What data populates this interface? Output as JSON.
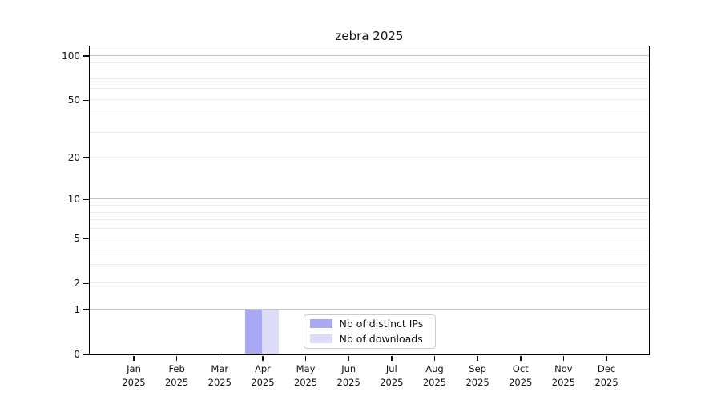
{
  "chart_data": {
    "type": "bar",
    "title": "zebra 2025",
    "categories": [
      {
        "month": "Jan",
        "year": "2025"
      },
      {
        "month": "Feb",
        "year": "2025"
      },
      {
        "month": "Mar",
        "year": "2025"
      },
      {
        "month": "Apr",
        "year": "2025"
      },
      {
        "month": "May",
        "year": "2025"
      },
      {
        "month": "Jun",
        "year": "2025"
      },
      {
        "month": "Jul",
        "year": "2025"
      },
      {
        "month": "Aug",
        "year": "2025"
      },
      {
        "month": "Sep",
        "year": "2025"
      },
      {
        "month": "Oct",
        "year": "2025"
      },
      {
        "month": "Nov",
        "year": "2025"
      },
      {
        "month": "Dec",
        "year": "2025"
      }
    ],
    "series": [
      {
        "name": "Nb of distinct IPs",
        "color": "#a8a8f4",
        "values": [
          0,
          0,
          0,
          1,
          0,
          0,
          0,
          0,
          0,
          0,
          0,
          0
        ]
      },
      {
        "name": "Nb of downloads",
        "color": "#dcdcf9",
        "values": [
          0,
          0,
          0,
          1,
          0,
          0,
          0,
          0,
          0,
          0,
          0,
          0
        ]
      }
    ],
    "y_axis": {
      "scale": "log10(value+1)",
      "tick_values": [
        0,
        1,
        2,
        5,
        10,
        20,
        50,
        100
      ],
      "tick_labels": [
        "0",
        "1",
        "2",
        "5",
        "10",
        "20",
        "50",
        "100"
      ],
      "minor_gridlines": [
        2,
        3,
        4,
        5,
        6,
        7,
        8,
        9,
        20,
        30,
        40,
        50,
        60,
        70,
        80,
        90
      ],
      "major_gridlines": [
        1,
        10,
        100
      ],
      "range": [
        0,
        116
      ]
    },
    "xlabel": "",
    "ylabel": "",
    "grid": "horizontal",
    "legend_position": "bottom-center-inside",
    "colors": {
      "grid_minor": "#ebebeb",
      "grid_major": "#c3c3c3",
      "spine": "#000000",
      "background": "#ffffff"
    }
  }
}
